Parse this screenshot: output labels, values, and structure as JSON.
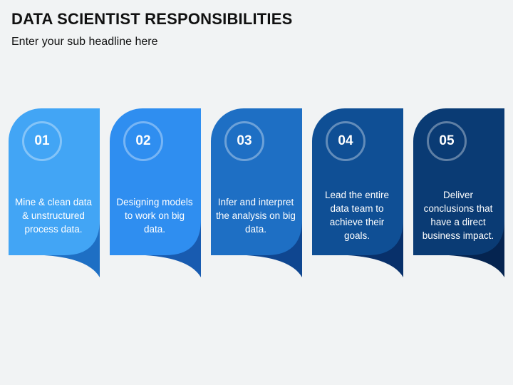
{
  "header": {
    "title": "DATA SCIENTIST RESPONSIBILITIES",
    "subtitle": "Enter your sub headline here"
  },
  "steps": [
    {
      "number": "01",
      "text": "Mine & clean data & unstructured process data.",
      "color": "#42a5f5",
      "dark": "#1e6fc4"
    },
    {
      "number": "02",
      "text": "Designing models to work on big data.",
      "color": "#2f8ef0",
      "dark": "#185bb0"
    },
    {
      "number": "03",
      "text": "Infer and interpret the analysis on big data.",
      "color": "#1e6fc4",
      "dark": "#0f4690"
    },
    {
      "number": "04",
      "text": "Lead the entire data team to achieve their goals.",
      "color": "#0f4f95",
      "dark": "#08306a"
    },
    {
      "number": "05",
      "text": "Deliver conclusions that have a direct business impact.",
      "color": "#0a3b74",
      "dark": "#052450"
    }
  ]
}
